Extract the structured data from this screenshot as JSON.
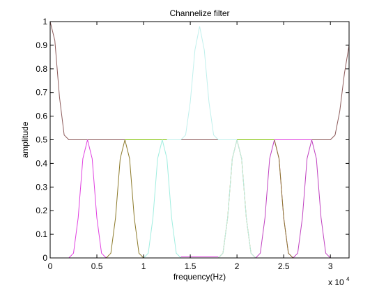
{
  "chart_data": {
    "type": "line",
    "title": "Channelize filter",
    "xlabel": "frequency(Hz)",
    "ylabel": "amplitude",
    "x_exponent_label": "x 10",
    "x_exponent_power": "4",
    "xlim": [
      0,
      32000
    ],
    "ylim": [
      0,
      1
    ],
    "x_ticks": [
      0,
      5000,
      10000,
      15000,
      20000,
      25000,
      30000
    ],
    "x_tick_labels": [
      "0",
      "0.5",
      "1",
      "1.5",
      "2",
      "2.5",
      "3"
    ],
    "y_ticks": [
      0,
      0.1,
      0.2,
      0.3,
      0.4,
      0.5,
      0.6,
      0.7,
      0.8,
      0.9,
      1
    ],
    "y_tick_labels": [
      "0",
      "0.1",
      "0.2",
      "0.3",
      "0.4",
      "0.5",
      "0.6",
      "0.7",
      "0.8",
      "0.9",
      "1"
    ],
    "grid": false,
    "series": [
      {
        "color": "#8c5a5a",
        "x": [
          0,
          500,
          1000,
          1500,
          2000,
          2500,
          30000,
          30500,
          31000,
          31500,
          32000
        ],
        "y": [
          1.0,
          0.92,
          0.68,
          0.52,
          0.5,
          0.5,
          0.5,
          0.52,
          0.62,
          0.78,
          0.9
        ]
      },
      {
        "color": "#e040e0",
        "x": [
          2000,
          2500,
          3000,
          3500,
          4000,
          4500,
          5000,
          5500,
          6000,
          6500
        ],
        "y": [
          0,
          0.02,
          0.17,
          0.42,
          0.5,
          0.42,
          0.17,
          0.02,
          0,
          0
        ]
      },
      {
        "color": "#8c7a2a",
        "x": [
          6000,
          6500,
          7000,
          7500,
          8000,
          8500,
          9000,
          9500,
          10000
        ],
        "y": [
          0,
          0.02,
          0.17,
          0.42,
          0.5,
          0.42,
          0.17,
          0.02,
          0
        ]
      },
      {
        "color": "#80c000",
        "x": [
          8000,
          8500,
          12000,
          12500
        ],
        "y": [
          0.5,
          0.5,
          0.5,
          0.5
        ]
      },
      {
        "color": "#a0eee0",
        "x": [
          10000,
          10500,
          11000,
          11500,
          12000,
          12500,
          13000,
          13500,
          14000
        ],
        "y": [
          0,
          0.02,
          0.17,
          0.42,
          0.5,
          0.42,
          0.17,
          0.02,
          0
        ]
      },
      {
        "color": "#c0f0ec",
        "x": [
          12500,
          14000,
          14500,
          15000,
          15500,
          16000,
          16500,
          17000,
          17500,
          18000,
          20000
        ],
        "y": [
          0.5,
          0.5,
          0.52,
          0.66,
          0.88,
          0.98,
          0.88,
          0.66,
          0.52,
          0.5,
          0.5
        ]
      },
      {
        "color": "#a08000",
        "x": [
          14000,
          18000,
          18500,
          19000,
          19500,
          20000,
          20500,
          21000,
          21500,
          22000
        ],
        "y": [
          0,
          0,
          0.02,
          0.17,
          0.42,
          0.5,
          0.42,
          0.17,
          0.02,
          0
        ]
      },
      {
        "color": "#e040e0",
        "x": [
          14000,
          18000
        ],
        "y": [
          0.005,
          0.005
        ]
      },
      {
        "color": "#c0f0ec",
        "x": [
          18000,
          18500,
          19000,
          19500,
          20000,
          20500,
          21000,
          21500,
          22000
        ],
        "y": [
          0,
          0.02,
          0.17,
          0.42,
          0.5,
          0.42,
          0.17,
          0.02,
          0
        ]
      },
      {
        "color": "#80c000",
        "x": [
          20000,
          24000
        ],
        "y": [
          0.5,
          0.5
        ]
      },
      {
        "color": "#c040c0",
        "x": [
          22000,
          22500,
          23000,
          23500,
          24000,
          24500,
          25000,
          25500,
          26000
        ],
        "y": [
          0,
          0.02,
          0.17,
          0.42,
          0.5,
          0.42,
          0.17,
          0.02,
          0
        ]
      },
      {
        "color": "#8c7a2a",
        "x": [
          24000,
          24500,
          25000,
          25500,
          26000,
          26500,
          27000
        ],
        "y": [
          0.5,
          0.42,
          0.17,
          0.02,
          0,
          0,
          0
        ]
      },
      {
        "color": "#e040e0",
        "x": [
          24000,
          28000
        ],
        "y": [
          0.5,
          0.5
        ]
      },
      {
        "color": "#c040c0",
        "x": [
          26000,
          26500,
          27000,
          27500,
          28000,
          28500,
          29000,
          29500,
          30000
        ],
        "y": [
          0,
          0.02,
          0.17,
          0.42,
          0.5,
          0.42,
          0.17,
          0.02,
          0
        ]
      }
    ]
  }
}
